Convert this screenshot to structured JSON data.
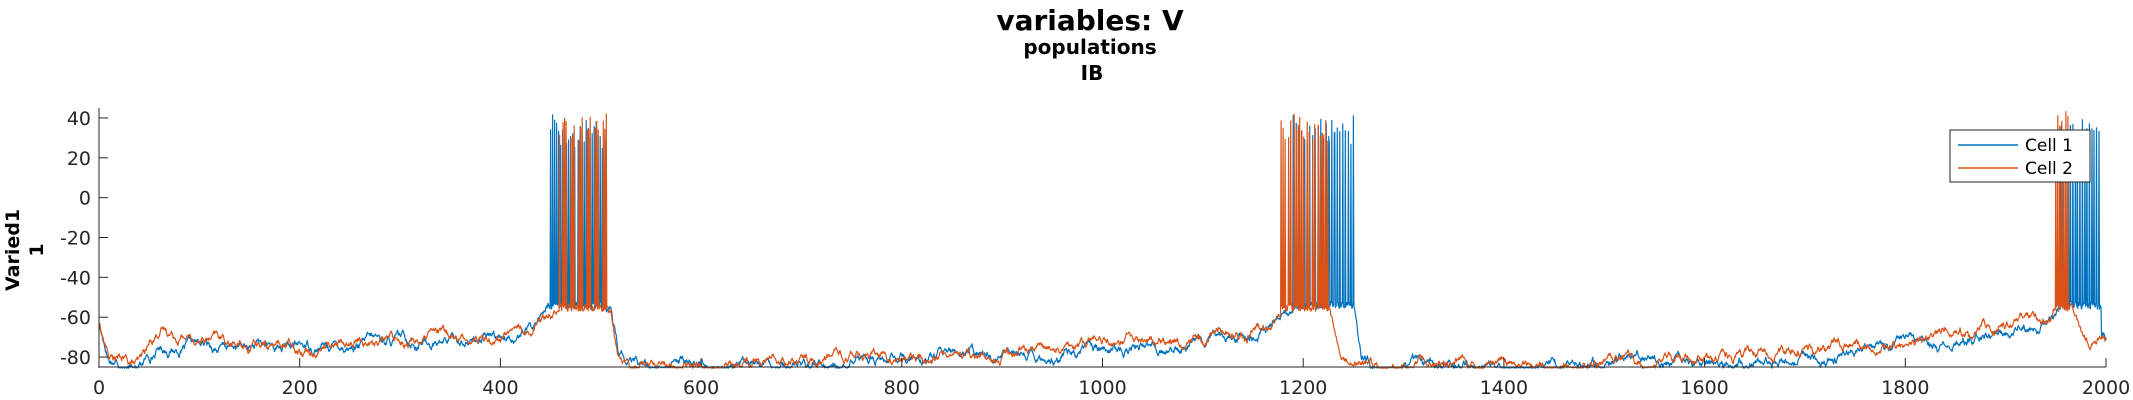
{
  "chart_data": {
    "type": "line",
    "title": "variables: V",
    "subtitle_1": "populations",
    "subtitle_2": "IB",
    "ylabel_1": "Varied1",
    "ylabel_2": "1",
    "xlim": [
      0,
      2000
    ],
    "ylim": [
      -85,
      45
    ],
    "x_ticks": [
      0,
      200,
      400,
      600,
      800,
      1000,
      1200,
      1400,
      1600,
      1800,
      2000
    ],
    "y_ticks": [
      -80,
      -60,
      -40,
      -20,
      0,
      20,
      40
    ],
    "grid": false,
    "legend_position": "top-right",
    "series": [
      {
        "name": "Cell 1",
        "color": "#0072BD",
        "baseline": [
          [
            0,
            -64
          ],
          [
            10,
            -80
          ],
          [
            40,
            -84
          ],
          [
            60,
            -75
          ],
          [
            150,
            -76
          ],
          [
            300,
            -72
          ],
          [
            380,
            -71
          ],
          [
            430,
            -66
          ],
          [
            447,
            -56
          ],
          [
            510,
            -56
          ],
          [
            518,
            -80
          ],
          [
            530,
            -85
          ],
          [
            700,
            -83
          ],
          [
            900,
            -80
          ],
          [
            1000,
            -76
          ],
          [
            1100,
            -72
          ],
          [
            1150,
            -67
          ],
          [
            1180,
            -58
          ],
          [
            1250,
            -52
          ],
          [
            1258,
            -80
          ],
          [
            1270,
            -85
          ],
          [
            1500,
            -84
          ],
          [
            1700,
            -80
          ],
          [
            1850,
            -72
          ],
          [
            1940,
            -63
          ],
          [
            1955,
            -56
          ],
          [
            2000,
            -70
          ]
        ],
        "bursts": [
          [
            450,
            505,
            28
          ],
          [
            1190,
            1250,
            22
          ],
          [
            1955,
            1995,
            17
          ]
        ],
        "peak": 42,
        "trough": -54
      },
      {
        "name": "Cell 2",
        "color": "#D95319",
        "baseline": [
          [
            0,
            -63
          ],
          [
            10,
            -80
          ],
          [
            40,
            -85
          ],
          [
            60,
            -66
          ],
          [
            150,
            -75
          ],
          [
            300,
            -71
          ],
          [
            380,
            -70
          ],
          [
            430,
            -64
          ],
          [
            447,
            -55
          ],
          [
            510,
            -55
          ],
          [
            518,
            -80
          ],
          [
            530,
            -85
          ],
          [
            700,
            -82
          ],
          [
            900,
            -79
          ],
          [
            1000,
            -74
          ],
          [
            1100,
            -70
          ],
          [
            1150,
            -66
          ],
          [
            1175,
            -62
          ],
          [
            1225,
            -56
          ],
          [
            1235,
            -80
          ],
          [
            1250,
            -85
          ],
          [
            1500,
            -83
          ],
          [
            1700,
            -78
          ],
          [
            1850,
            -68
          ],
          [
            1945,
            -62
          ],
          [
            1950,
            -55
          ],
          [
            1965,
            -56
          ],
          [
            1980,
            -73
          ],
          [
            2000,
            -68
          ]
        ],
        "bursts": [
          [
            459,
            507,
            30
          ],
          [
            1178,
            1226,
            26
          ],
          [
            1950,
            1962,
            6
          ]
        ],
        "peak": 44,
        "trough": -55
      }
    ]
  }
}
